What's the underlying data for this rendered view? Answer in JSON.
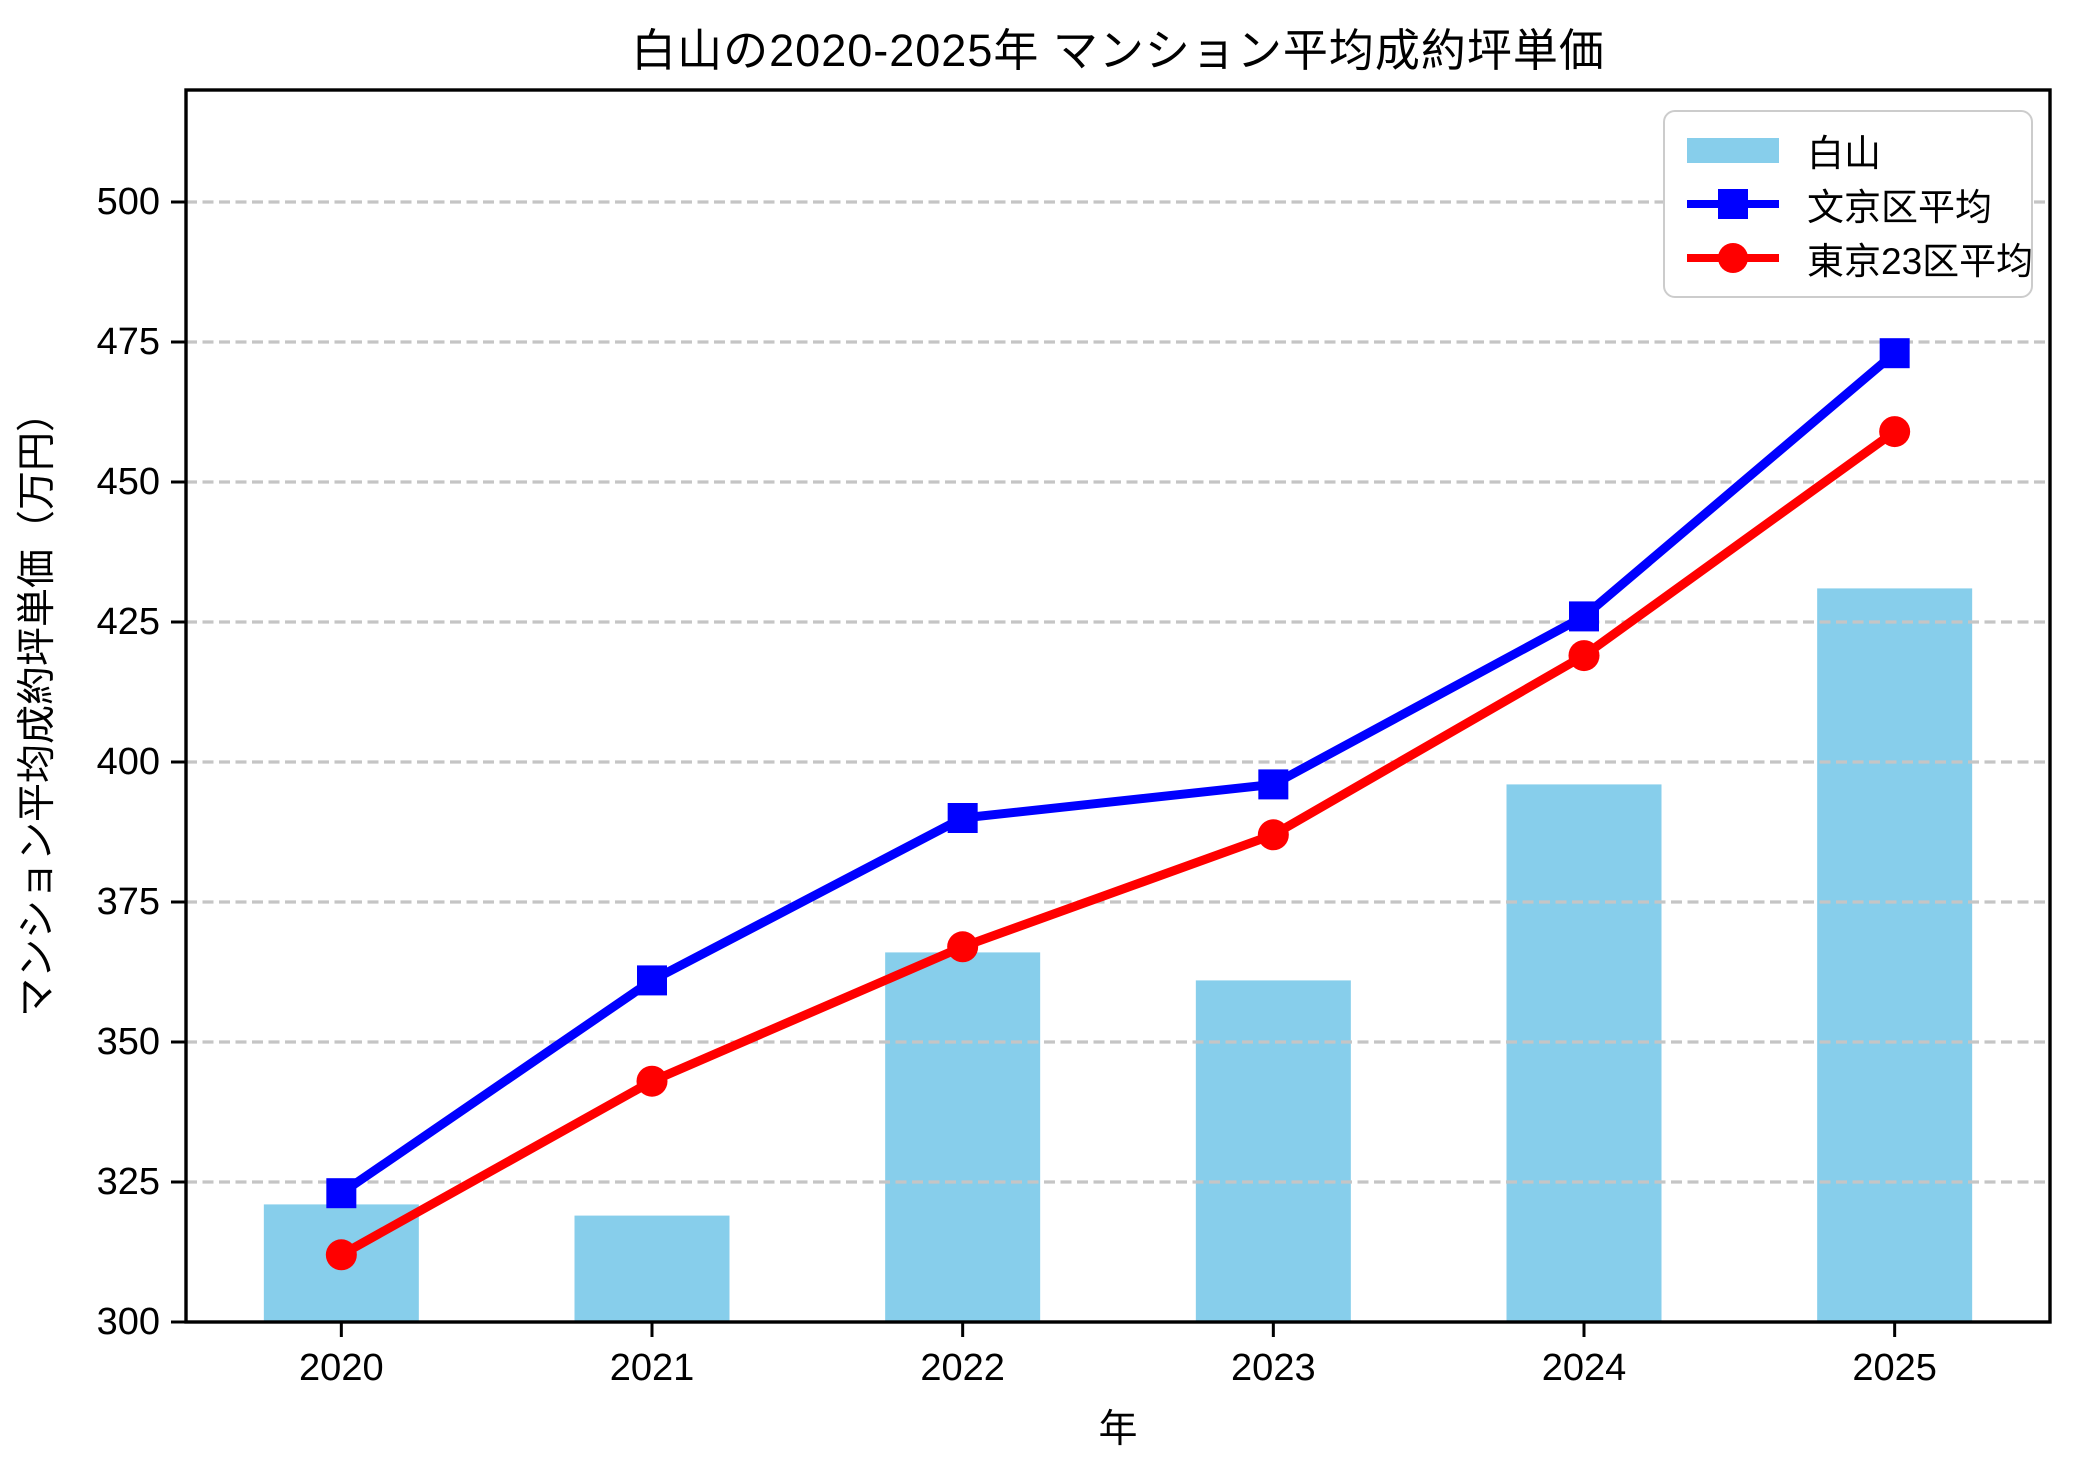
{
  "chart_data": {
    "type": "combo-bar-line",
    "title": "白山の2020-2025年 マンション平均成約坪単価",
    "xlabel": "年",
    "ylabel": "マンション平均成約坪単価（万円）",
    "categories": [
      "2020",
      "2021",
      "2022",
      "2023",
      "2024",
      "2025"
    ],
    "series": [
      {
        "name": "白山",
        "type": "bar",
        "marker": "none",
        "color": "#87ceeb",
        "values": [
          321,
          319,
          366,
          361,
          396,
          431
        ]
      },
      {
        "name": "文京区平均",
        "type": "line",
        "marker": "square",
        "color": "#0000ff",
        "values": [
          323,
          361,
          390,
          396,
          426,
          473
        ]
      },
      {
        "name": "東京23区平均",
        "type": "line",
        "marker": "circle",
        "color": "#ff0000",
        "values": [
          312,
          343,
          367,
          387,
          419,
          459
        ]
      }
    ],
    "ylim": [
      300,
      520
    ],
    "yticks": [
      300,
      325,
      350,
      375,
      400,
      425,
      450,
      475,
      500
    ],
    "grid": "horizontal-dashed",
    "grid_color": "#c5c5c5",
    "axis_color": "#000000",
    "legend_position": "top-right"
  }
}
